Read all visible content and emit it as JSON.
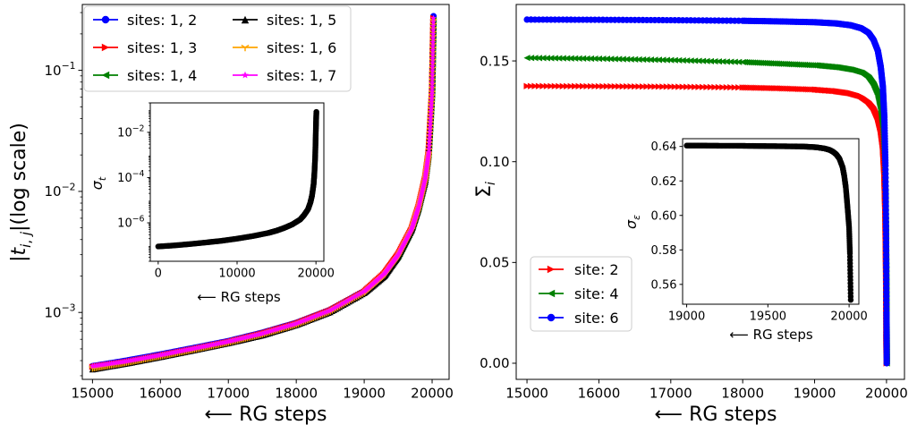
{
  "chart_data": [
    {
      "type": "scatter",
      "panel": "left-main",
      "xlabel": "⟵ RG steps",
      "ylabel": "|t_{i,j}|(log scale)",
      "xlim": [
        14850,
        20250
      ],
      "ylim": [
        0.00028,
        0.35
      ],
      "yscale": "log",
      "xticks": [
        15000,
        16000,
        17000,
        18000,
        19000,
        20000
      ],
      "yticks": [
        {
          "value": 0.001,
          "base": "10",
          "exp": "−3"
        },
        {
          "value": 0.01,
          "base": "10",
          "exp": "−2"
        },
        {
          "value": 0.1,
          "base": "10",
          "exp": "−1"
        }
      ],
      "legend_position": "top-left",
      "series": [
        {
          "name": "sites: 1, 2",
          "color": "#0000ff",
          "marker": "circle",
          "x": [
            15000,
            15500,
            16000,
            16500,
            17000,
            17500,
            18000,
            18500,
            19000,
            19300,
            19500,
            19700,
            19800,
            19900,
            19950,
            20000,
            20020
          ],
          "y": [
            0.00036,
            0.0004,
            0.00045,
            0.00051,
            0.00058,
            0.00068,
            0.00082,
            0.00105,
            0.0015,
            0.0021,
            0.003,
            0.005,
            0.0075,
            0.013,
            0.022,
            0.07,
            0.28
          ]
        },
        {
          "name": "sites: 1, 3",
          "color": "#ff0000",
          "marker": "triangle-right",
          "x": [
            15000,
            15500,
            16000,
            16500,
            17000,
            17500,
            18000,
            18500,
            19000,
            19300,
            19500,
            19700,
            19800,
            19900,
            19950,
            20000,
            20020
          ],
          "y": [
            0.000355,
            0.00039,
            0.00044,
            0.0005,
            0.00057,
            0.00067,
            0.00081,
            0.00104,
            0.00148,
            0.0021,
            0.003,
            0.0049,
            0.0074,
            0.013,
            0.021,
            0.068,
            0.27
          ]
        },
        {
          "name": "sites: 1, 4",
          "color": "#008000",
          "marker": "triangle-left",
          "x": [
            15000,
            15500,
            16000,
            16500,
            17000,
            17500,
            18000,
            18500,
            19000,
            19300,
            19500,
            19700,
            19800,
            19900,
            19950,
            20000,
            20020
          ],
          "y": [
            0.00035,
            0.00039,
            0.00044,
            0.0005,
            0.00057,
            0.00066,
            0.0008,
            0.00103,
            0.00147,
            0.0021,
            0.0029,
            0.0049,
            0.0073,
            0.013,
            0.021,
            0.066,
            0.26
          ]
        },
        {
          "name": "sites: 1, 5",
          "color": "#000000",
          "marker": "triangle-up",
          "x": [
            15000,
            15500,
            16000,
            16500,
            17000,
            17500,
            18000,
            18500,
            19000,
            19300,
            19500,
            19700,
            19800,
            19900,
            19950,
            20000,
            20020
          ],
          "y": [
            0.00034,
            0.00038,
            0.00043,
            0.00049,
            0.00056,
            0.00065,
            0.00079,
            0.00101,
            0.00145,
            0.002,
            0.0029,
            0.0048,
            0.0072,
            0.012,
            0.02,
            0.064,
            0.25
          ]
        },
        {
          "name": "sites: 1, 6",
          "color": "#ffa500",
          "marker": "tri-down",
          "x": [
            15000,
            15500,
            16000,
            16500,
            17000,
            17500,
            18000,
            18500,
            19000,
            19300,
            19500,
            19700,
            19800,
            19900,
            19950,
            20000,
            20020
          ],
          "y": [
            0.000345,
            0.000385,
            0.000435,
            0.000495,
            0.000565,
            0.00066,
            0.000795,
            0.00102,
            0.00146,
            0.00205,
            0.0029,
            0.0048,
            0.0072,
            0.0125,
            0.0205,
            0.065,
            0.255
          ]
        },
        {
          "name": "sites: 1, 7",
          "color": "#ff00ff",
          "marker": "star",
          "x": [
            15000,
            15500,
            16000,
            16500,
            17000,
            17500,
            18000,
            18500,
            19000,
            19300,
            19500,
            19700,
            19800,
            19900,
            19950,
            20000,
            20020
          ],
          "y": [
            0.00036,
            0.000395,
            0.000445,
            0.000505,
            0.000575,
            0.00067,
            0.00081,
            0.00104,
            0.00149,
            0.0021,
            0.003,
            0.0049,
            0.0074,
            0.013,
            0.021,
            0.068,
            0.27
          ]
        }
      ]
    },
    {
      "type": "scatter",
      "panel": "left-inset",
      "xlabel": "⟵ RG steps",
      "ylabel": "σ_t",
      "xlim": [
        -1000,
        21000
      ],
      "ylim": [
        2e-08,
        0.2
      ],
      "yscale": "log",
      "xticks": [
        0,
        10000,
        20000
      ],
      "yticks": [
        {
          "value": 1e-06,
          "base": "10",
          "exp": "−6"
        },
        {
          "value": 0.0001,
          "base": "10",
          "exp": "−4"
        },
        {
          "value": 0.01,
          "base": "10",
          "exp": "−2"
        }
      ],
      "series": [
        {
          "color": "#000000",
          "marker": "circle",
          "x": [
            0,
            2000,
            4000,
            6000,
            8000,
            10000,
            12000,
            14000,
            15000,
            16000,
            17000,
            18000,
            18500,
            19000,
            19300,
            19500,
            19700,
            19800,
            19900,
            19950,
            20000,
            20050
          ],
          "y": [
            9e-08,
            1e-07,
            1.15e-07,
            1.35e-07,
            1.6e-07,
            2e-07,
            2.6e-07,
            3.6e-07,
            4.5e-07,
            6e-07,
            8.5e-07,
            1.4e-06,
            2.2e-06,
            4e-06,
            8e-06,
            1.6e-05,
            5e-05,
            0.00015,
            0.0008,
            0.004,
            0.02,
            0.08
          ]
        }
      ]
    },
    {
      "type": "scatter",
      "panel": "right-main",
      "xlabel": "⟵ RG steps",
      "ylabel": "Σ_i",
      "xlim": [
        14850,
        20250
      ],
      "ylim": [
        -0.008,
        0.178
      ],
      "xticks": [
        15000,
        16000,
        17000,
        18000,
        19000,
        20000
      ],
      "yticks": [
        "0.00",
        "0.05",
        "0.10",
        "0.15"
      ],
      "legend_position": "lower-left",
      "series": [
        {
          "name": "site: 2",
          "color": "#ff0000",
          "marker": "triangle-right",
          "x": [
            15000,
            16000,
            17000,
            18000,
            18500,
            19000,
            19300,
            19500,
            19650,
            19750,
            19820,
            19880,
            19920,
            19950,
            19970,
            19985,
            19995,
            20000,
            20003
          ],
          "y": [
            0.1375,
            0.1374,
            0.1372,
            0.1368,
            0.1364,
            0.1358,
            0.135,
            0.134,
            0.1325,
            0.13,
            0.127,
            0.122,
            0.116,
            0.108,
            0.095,
            0.075,
            0.045,
            0.015,
            0.0
          ]
        },
        {
          "name": "site: 4",
          "color": "#008000",
          "marker": "triangle-left",
          "x": [
            15000,
            16000,
            17000,
            18000,
            18500,
            19000,
            19300,
            19500,
            19650,
            19750,
            19820,
            19880,
            19920,
            19950,
            19970,
            19985,
            19995,
            20000,
            20003
          ],
          "y": [
            0.1515,
            0.1511,
            0.1504,
            0.1494,
            0.1486,
            0.1478,
            0.1468,
            0.1456,
            0.144,
            0.1415,
            0.138,
            0.133,
            0.126,
            0.117,
            0.104,
            0.083,
            0.052,
            0.02,
            0.0
          ]
        },
        {
          "name": "site: 6",
          "color": "#0000ff",
          "marker": "circle",
          "x": [
            15000,
            16000,
            17000,
            18000,
            18500,
            19000,
            19300,
            19500,
            19650,
            19750,
            19820,
            19880,
            19920,
            19950,
            19970,
            19985,
            19995,
            20000,
            20003
          ],
          "y": [
            0.1705,
            0.1704,
            0.1702,
            0.1699,
            0.1696,
            0.1692,
            0.1686,
            0.1677,
            0.1662,
            0.164,
            0.1605,
            0.155,
            0.147,
            0.137,
            0.122,
            0.098,
            0.062,
            0.025,
            0.0
          ]
        }
      ]
    },
    {
      "type": "scatter",
      "panel": "right-inset",
      "xlabel": "⟵ RG steps",
      "ylabel": "σ_ε",
      "xlim": [
        18975,
        20060
      ],
      "ylim": [
        0.5485,
        0.6445
      ],
      "xticks": [
        19000,
        19500,
        20000
      ],
      "yticks": [
        "0.56",
        "0.58",
        "0.60",
        "0.62",
        "0.64"
      ],
      "series": [
        {
          "color": "#000000",
          "marker": "circle",
          "x": [
            19000,
            19100,
            19200,
            19300,
            19400,
            19500,
            19600,
            19700,
            19750,
            19800,
            19850,
            19880,
            19900,
            19920,
            19940,
            19960,
            19970,
            19980,
            19990,
            20000,
            20005,
            20010
          ],
          "y": [
            0.6405,
            0.6405,
            0.6404,
            0.6404,
            0.6403,
            0.6402,
            0.6401,
            0.64,
            0.6398,
            0.6395,
            0.6388,
            0.638,
            0.637,
            0.6355,
            0.633,
            0.628,
            0.623,
            0.616,
            0.605,
            0.593,
            0.578,
            0.551
          ]
        }
      ]
    }
  ]
}
